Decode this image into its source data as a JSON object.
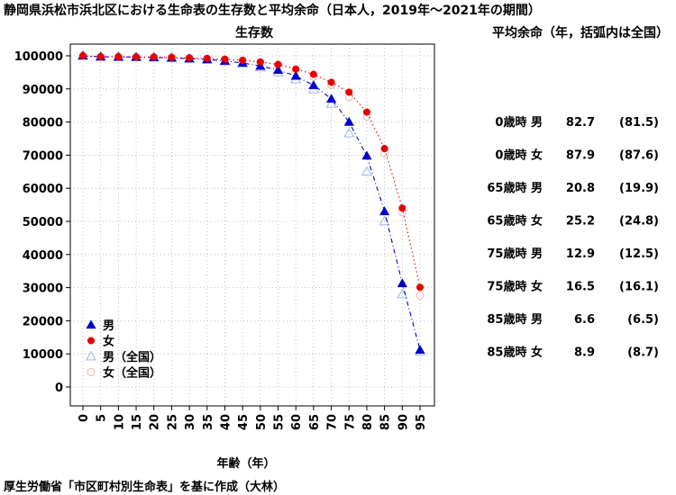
{
  "chart_data": {
    "type": "scatter",
    "title": "静岡県浜松市浜北区における生命表の生存数と平均余命（日本人，2019年～2021年の期間）",
    "subtitle": "生存数",
    "xlabel": "年齢（年）",
    "ylabel": "",
    "x": [
      0,
      5,
      10,
      15,
      20,
      25,
      30,
      35,
      40,
      45,
      50,
      55,
      60,
      65,
      70,
      75,
      80,
      85,
      90,
      95
    ],
    "xticks": [
      "0",
      "5",
      "10",
      "15",
      "20",
      "25",
      "30",
      "35",
      "40",
      "45",
      "50",
      "55",
      "60",
      "65",
      "70",
      "75",
      "80",
      "85",
      "90",
      "95"
    ],
    "yticks": [
      "0",
      "10000",
      "20000",
      "30000",
      "40000",
      "50000",
      "60000",
      "70000",
      "80000",
      "90000",
      "100000"
    ],
    "ylim": [
      0,
      100000
    ],
    "xlim": [
      0,
      95
    ],
    "grid": true,
    "legend_position": "bottom-left",
    "series": [
      {
        "name": "男",
        "color": "#0000cc",
        "marker": "triangle-filled",
        "line": "dash-dot",
        "values": [
          100000,
          99700,
          99650,
          99600,
          99500,
          99350,
          99150,
          98900,
          98450,
          97850,
          96900,
          95700,
          93900,
          91100,
          87000,
          80000,
          69800,
          53000,
          31300,
          11200
        ]
      },
      {
        "name": "女",
        "color": "#e60000",
        "marker": "circle-filled",
        "line": "dotted",
        "values": [
          100000,
          99750,
          99700,
          99650,
          99600,
          99500,
          99350,
          99200,
          98950,
          98650,
          98150,
          97400,
          96000,
          94400,
          92000,
          89000,
          83000,
          72000,
          54000,
          30100
        ]
      },
      {
        "name": "男（全国）",
        "color": "#9fb8e6",
        "marker": "triangle-open",
        "line": "none",
        "values": [
          100000,
          99700,
          99650,
          99600,
          99500,
          99350,
          99100,
          98800,
          98300,
          97600,
          96500,
          95000,
          92900,
          89900,
          85500,
          76600,
          65000,
          50000,
          28000,
          10700
        ]
      },
      {
        "name": "女（全国）",
        "color": "#f0b4b4",
        "marker": "circle-open",
        "line": "none",
        "values": [
          100000,
          99750,
          99700,
          99650,
          99600,
          99500,
          99350,
          99150,
          98900,
          98500,
          98000,
          97100,
          95600,
          93700,
          91200,
          87600,
          81600,
          70500,
          52800,
          27700
        ]
      }
    ],
    "legend_entries": [
      "男",
      "女",
      "男（全国）",
      "女（全国）"
    ]
  },
  "life_expectancy": {
    "title": "平均余命（年，括弧内は全国）",
    "rows": [
      {
        "label": "0歳時 男",
        "value": "82.7",
        "national": "(81.5)"
      },
      {
        "label": "0歳時 女",
        "value": "87.9",
        "national": "(87.6)"
      },
      {
        "label": "65歳時 男",
        "value": "20.8",
        "national": "(19.9)"
      },
      {
        "label": "65歳時 女",
        "value": "25.2",
        "national": "(24.8)"
      },
      {
        "label": "75歳時 男",
        "value": "12.9",
        "national": "(12.5)"
      },
      {
        "label": "75歳時 女",
        "value": "16.5",
        "national": "(16.1)"
      },
      {
        "label": "85歳時 男",
        "value": "6.6",
        "national": "(6.5)"
      },
      {
        "label": "85歳時 女",
        "value": "8.9",
        "national": "(8.7)"
      }
    ]
  },
  "source": "厚生労働省「市区町村別生命表」を基に作成（大林）"
}
